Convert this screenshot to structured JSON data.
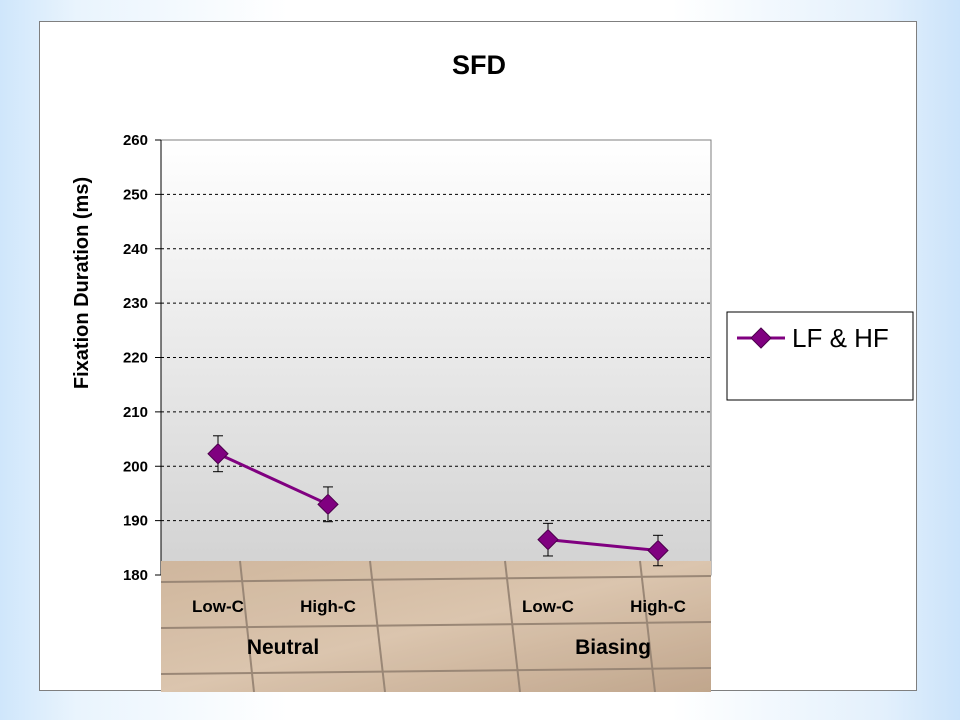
{
  "chart_data": {
    "type": "line",
    "title": "SFD",
    "xlabel": "",
    "ylabel": "Fixation Duration (ms)",
    "ylim": [
      180,
      260
    ],
    "yticks": [
      180,
      190,
      200,
      210,
      220,
      230,
      240,
      250,
      260
    ],
    "grid": true,
    "legend_position": "right",
    "categories": [
      "Low-C",
      "High-C",
      "Low-C",
      "High-C"
    ],
    "groups": [
      "Neutral",
      "Biasing"
    ],
    "series": [
      {
        "name": "LF & HF",
        "color": "#800080",
        "marker": "diamond",
        "segments": [
          [
            0,
            1
          ],
          [
            2,
            3
          ]
        ],
        "values": [
          202.3,
          193.0,
          186.5,
          184.5
        ],
        "error": [
          3.3,
          3.2,
          3.0,
          2.8
        ]
      }
    ]
  },
  "colors": {
    "series": "#800080",
    "plot_bg_top": "#ffffff",
    "plot_bg_bottom": "#d4d4d4",
    "gridline": "#000000"
  }
}
